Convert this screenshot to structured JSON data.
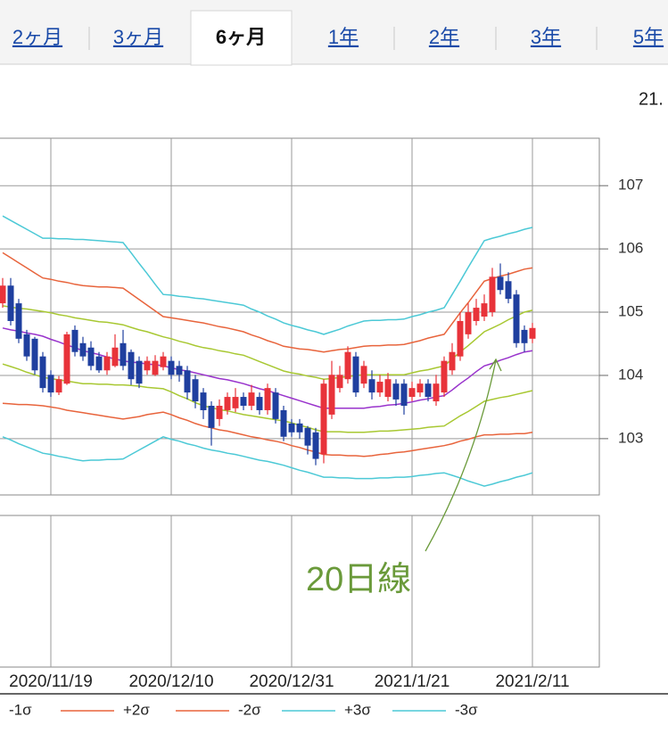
{
  "tabs": [
    "2ヶ月",
    "3ヶ月",
    "6ヶ月",
    "1年",
    "2年",
    "3年",
    "5年"
  ],
  "selected_tab": "6ヶ月",
  "header_fragment": "21.",
  "chart_data": {
    "type": "candlestick",
    "annotation": "20日線",
    "categories": [
      null,
      null,
      null,
      null,
      null,
      null,
      "2020/11/19",
      null,
      null,
      null,
      null,
      null,
      null,
      null,
      null,
      null,
      null,
      null,
      null,
      null,
      null,
      "2020/12/10",
      null,
      null,
      null,
      null,
      null,
      null,
      null,
      null,
      null,
      null,
      null,
      null,
      null,
      null,
      "2020/12/31",
      null,
      null,
      null,
      null,
      null,
      null,
      null,
      null,
      null,
      null,
      null,
      null,
      null,
      null,
      "2021/1/21",
      null,
      null,
      null,
      null,
      null,
      null,
      null,
      null,
      null,
      null,
      null,
      null,
      null,
      null,
      "2021/2/11"
    ],
    "open": [
      105.14,
      105.42,
      105.14,
      104.65,
      104.58,
      104.3,
      104.01,
      103.73,
      103.87,
      104.72,
      104.51,
      104.44,
      104.3,
      104.08,
      104.15,
      104.51,
      104.37,
      104.23,
      104.08,
      104.01,
      104.13,
      104.23,
      104.15,
      104.08,
      103.94,
      103.73,
      103.52,
      103.31,
      103.45,
      103.48,
      103.66,
      103.52,
      103.66,
      103.45,
      103.73,
      103.45,
      103.24,
      103.24,
      103.17,
      103.1,
      102.75,
      103.38,
      103.8,
      103.94,
      104.3,
      103.87,
      103.94,
      103.73,
      103.66,
      103.87,
      103.87,
      103.66,
      103.73,
      103.87,
      103.59,
      103.73,
      104.08,
      104.3,
      104.65,
      104.86,
      104.93,
      105.0,
      105.56,
      105.49,
      105.28,
      104.72,
      104.58
    ],
    "high": [
      105.54,
      105.54,
      105.21,
      104.72,
      104.61,
      104.37,
      104.08,
      103.99,
      104.69,
      104.79,
      104.61,
      104.54,
      104.37,
      104.37,
      104.65,
      104.72,
      104.41,
      104.3,
      104.3,
      104.32,
      104.37,
      104.3,
      104.23,
      104.15,
      104.01,
      103.8,
      103.59,
      103.62,
      103.73,
      103.8,
      103.73,
      103.85,
      103.73,
      103.87,
      103.8,
      103.52,
      103.31,
      103.31,
      103.2,
      103.17,
      103.94,
      104.23,
      104.15,
      104.46,
      104.37,
      104.23,
      104.08,
      104.01,
      104.04,
      103.94,
      103.94,
      103.9,
      103.94,
      103.94,
      104.01,
      104.3,
      104.51,
      105.0,
      105.14,
      105.21,
      105.28,
      105.7,
      105.77,
      105.63,
      105.35,
      104.79,
      104.83
    ],
    "low": [
      105.07,
      104.79,
      104.51,
      104.23,
      104.01,
      103.73,
      103.66,
      103.69,
      103.85,
      104.3,
      104.23,
      104.08,
      104.04,
      104.01,
      104.13,
      104.08,
      103.85,
      103.8,
      104.01,
      103.99,
      104.08,
      103.94,
      103.9,
      103.62,
      103.48,
      103.31,
      102.89,
      103.2,
      103.38,
      103.42,
      103.45,
      103.45,
      103.38,
      103.38,
      103.24,
      102.96,
      103.03,
      103.0,
      102.75,
      102.58,
      102.61,
      103.31,
      103.73,
      103.87,
      103.66,
      103.8,
      103.62,
      103.66,
      103.59,
      103.52,
      103.38,
      103.59,
      103.66,
      103.59,
      103.52,
      103.66,
      104.01,
      104.23,
      104.58,
      104.79,
      104.86,
      104.93,
      105.28,
      105.14,
      104.44,
      104.37,
      104.51
    ],
    "close": [
      105.42,
      104.86,
      104.58,
      104.3,
      104.08,
      103.8,
      103.73,
      103.94,
      104.65,
      104.37,
      104.3,
      104.15,
      104.08,
      104.3,
      104.44,
      104.15,
      103.94,
      103.87,
      104.23,
      104.23,
      104.3,
      104.01,
      104.01,
      103.73,
      103.59,
      103.45,
      103.17,
      103.52,
      103.66,
      103.66,
      103.52,
      103.73,
      103.45,
      103.8,
      103.31,
      103.03,
      103.1,
      103.1,
      102.89,
      102.68,
      103.87,
      104.01,
      104.01,
      104.37,
      103.73,
      104.15,
      103.73,
      103.9,
      103.94,
      103.62,
      103.52,
      103.8,
      103.87,
      103.66,
      103.87,
      104.23,
      104.37,
      104.86,
      105.0,
      105.07,
      105.14,
      105.56,
      105.35,
      105.21,
      104.51,
      104.51,
      104.75
    ],
    "up_color": "#e8333a",
    "down_color": "#1f3f9f",
    "series": [
      {
        "color": "#9933cc",
        "values": [
          104.75,
          104.72,
          104.7,
          104.67,
          104.65,
          104.62,
          104.57,
          104.53,
          104.48,
          104.44,
          104.39,
          104.36,
          104.33,
          104.29,
          104.26,
          104.23,
          104.21,
          104.2,
          104.18,
          104.17,
          104.15,
          104.12,
          104.09,
          104.07,
          104.04,
          104.01,
          103.98,
          103.95,
          103.93,
          103.9,
          103.87,
          103.83,
          103.79,
          103.76,
          103.72,
          103.68,
          103.64,
          103.6,
          103.56,
          103.52,
          103.48,
          103.48,
          103.48,
          103.48,
          103.48,
          103.48,
          103.5,
          103.51,
          103.53,
          103.54,
          103.56,
          103.58,
          103.61,
          103.63,
          103.66,
          103.68,
          103.77,
          103.87,
          103.96,
          104.06,
          104.15,
          104.19,
          104.24,
          104.28,
          104.33,
          104.37,
          104.39
        ]
      },
      {
        "color": "#a8c832",
        "values": [
          105.1,
          105.08,
          105.06,
          105.05,
          105.03,
          105.01,
          104.99,
          104.96,
          104.94,
          104.91,
          104.89,
          104.87,
          104.85,
          104.84,
          104.82,
          104.8,
          104.76,
          104.72,
          104.69,
          104.65,
          104.61,
          104.58,
          104.54,
          104.51,
          104.47,
          104.44,
          104.42,
          104.39,
          104.37,
          104.34,
          104.32,
          104.27,
          104.22,
          104.17,
          104.12,
          104.07,
          104.04,
          104.02,
          103.99,
          103.97,
          103.94,
          103.95,
          103.97,
          103.98,
          104.0,
          104.01,
          104.01,
          104.01,
          104.01,
          104.01,
          104.01,
          104.04,
          104.07,
          104.09,
          104.12,
          104.15,
          104.26,
          104.37,
          104.47,
          104.58,
          104.69,
          104.75,
          104.81,
          104.88,
          104.94,
          105.0,
          105.03
        ]
      },
      {
        "name": "-1σ",
        "color": "#a8c832",
        "values": [
          104.18,
          104.14,
          104.1,
          104.05,
          104.01,
          103.97,
          103.95,
          103.93,
          103.91,
          103.89,
          103.87,
          103.87,
          103.86,
          103.86,
          103.85,
          103.85,
          103.84,
          103.83,
          103.81,
          103.8,
          103.79,
          103.74,
          103.68,
          103.63,
          103.57,
          103.52,
          103.49,
          103.46,
          103.44,
          103.41,
          103.38,
          103.36,
          103.34,
          103.32,
          103.3,
          103.28,
          103.25,
          103.21,
          103.18,
          103.14,
          103.11,
          103.11,
          103.11,
          103.1,
          103.1,
          103.1,
          103.11,
          103.12,
          103.12,
          103.13,
          103.14,
          103.15,
          103.16,
          103.18,
          103.19,
          103.2,
          103.28,
          103.36,
          103.43,
          103.51,
          103.59,
          103.62,
          103.65,
          103.67,
          103.7,
          103.73,
          103.76
        ]
      },
      {
        "name": "+2σ",
        "color": "#e8643c",
        "values": [
          105.94,
          105.86,
          105.78,
          105.7,
          105.62,
          105.54,
          105.52,
          105.49,
          105.47,
          105.44,
          105.42,
          105.41,
          105.4,
          105.4,
          105.39,
          105.38,
          105.29,
          105.2,
          105.11,
          105.02,
          104.93,
          104.91,
          104.89,
          104.87,
          104.85,
          104.83,
          104.8,
          104.77,
          104.75,
          104.72,
          104.69,
          104.64,
          104.6,
          104.55,
          104.51,
          104.46,
          104.44,
          104.42,
          104.41,
          104.39,
          104.37,
          104.39,
          104.41,
          104.42,
          104.44,
          104.46,
          104.47,
          104.47,
          104.48,
          104.48,
          104.49,
          104.52,
          104.55,
          104.59,
          104.62,
          104.65,
          104.82,
          104.99,
          105.15,
          105.32,
          105.49,
          105.53,
          105.57,
          105.6,
          105.64,
          105.68,
          105.7
        ]
      },
      {
        "name": "-2σ",
        "color": "#e8643c",
        "values": [
          103.56,
          103.55,
          103.54,
          103.54,
          103.53,
          103.52,
          103.5,
          103.48,
          103.45,
          103.43,
          103.41,
          103.39,
          103.37,
          103.35,
          103.33,
          103.31,
          103.33,
          103.35,
          103.38,
          103.4,
          103.42,
          103.38,
          103.33,
          103.29,
          103.24,
          103.2,
          103.17,
          103.14,
          103.12,
          103.09,
          103.06,
          103.03,
          103.01,
          102.98,
          102.96,
          102.93,
          102.89,
          102.86,
          102.82,
          102.79,
          102.75,
          102.74,
          102.74,
          102.73,
          102.73,
          102.72,
          102.73,
          102.75,
          102.76,
          102.78,
          102.79,
          102.81,
          102.83,
          102.85,
          102.87,
          102.89,
          102.92,
          102.96,
          102.99,
          103.03,
          103.06,
          103.06,
          103.07,
          103.07,
          103.08,
          103.08,
          103.1
        ]
      },
      {
        "name": "+3σ",
        "color": "#4cc9d6",
        "values": [
          106.52,
          106.45,
          106.38,
          106.31,
          106.24,
          106.17,
          106.17,
          106.16,
          106.16,
          106.15,
          106.15,
          106.14,
          106.13,
          106.12,
          106.11,
          106.1,
          105.94,
          105.77,
          105.61,
          105.44,
          105.28,
          105.27,
          105.25,
          105.24,
          105.22,
          105.21,
          105.19,
          105.17,
          105.15,
          105.13,
          105.11,
          105.05,
          105.0,
          104.94,
          104.89,
          104.83,
          104.79,
          104.76,
          104.72,
          104.69,
          104.65,
          104.69,
          104.73,
          104.78,
          104.82,
          104.86,
          104.87,
          104.87,
          104.88,
          104.88,
          104.89,
          104.93,
          104.96,
          105.0,
          105.03,
          105.07,
          105.28,
          105.49,
          105.71,
          105.92,
          106.13,
          106.17,
          106.2,
          106.24,
          106.27,
          106.31,
          106.34
        ]
      },
      {
        "name": "-3σ",
        "color": "#4cc9d6",
        "values": [
          103.03,
          102.98,
          102.92,
          102.87,
          102.82,
          102.77,
          102.75,
          102.72,
          102.7,
          102.67,
          102.65,
          102.66,
          102.66,
          102.67,
          102.67,
          102.68,
          102.75,
          102.82,
          102.89,
          102.96,
          103.03,
          102.99,
          102.96,
          102.92,
          102.89,
          102.85,
          102.82,
          102.8,
          102.77,
          102.75,
          102.72,
          102.69,
          102.66,
          102.64,
          102.61,
          102.58,
          102.54,
          102.5,
          102.47,
          102.43,
          102.39,
          102.39,
          102.38,
          102.38,
          102.37,
          102.37,
          102.37,
          102.38,
          102.38,
          102.39,
          102.39,
          102.4,
          102.42,
          102.43,
          102.45,
          102.46,
          102.42,
          102.38,
          102.33,
          102.29,
          102.25,
          102.28,
          102.32,
          102.35,
          102.39,
          102.42,
          102.46
        ]
      }
    ],
    "ylim": [
      102.11,
      107.75
    ],
    "yticks": [
      103,
      104,
      105,
      106,
      107
    ],
    "grid": true
  }
}
